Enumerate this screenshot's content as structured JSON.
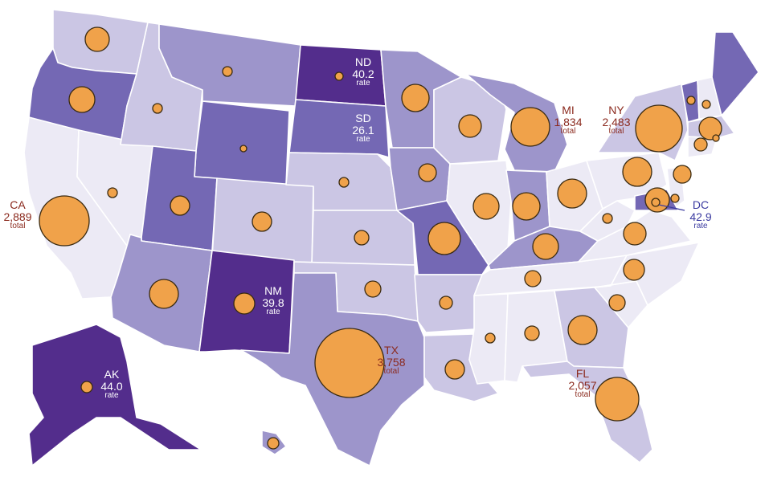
{
  "colors": {
    "level1": "#eceaf5",
    "level2": "#cbc6e4",
    "level3": "#9d95cb",
    "level4": "#7468b4",
    "level5": "#532d8c",
    "bubble": "#f0a24a",
    "total_label": "#8b2a1e",
    "rate_label_on_dark": "#ffffff",
    "rate_label_blue": "#3a3aa0"
  },
  "labels": {
    "CA": {
      "abbr": "CA",
      "value": "2,889",
      "kind": "total"
    },
    "TX": {
      "abbr": "TX",
      "value": "3,758",
      "kind": "total"
    },
    "FL": {
      "abbr": "FL",
      "value": "2,057",
      "kind": "total"
    },
    "NY": {
      "abbr": "NY",
      "value": "2,483",
      "kind": "total"
    },
    "MI": {
      "abbr": "MI",
      "value": "1,834",
      "kind": "total"
    },
    "ND": {
      "abbr": "ND",
      "value": "40.2",
      "kind": "rate"
    },
    "SD": {
      "abbr": "SD",
      "value": "26.1",
      "kind": "rate"
    },
    "NM": {
      "abbr": "NM",
      "value": "39.8",
      "kind": "rate"
    },
    "AK": {
      "abbr": "AK",
      "value": "44.0",
      "kind": "rate"
    },
    "DC": {
      "abbr": "DC",
      "value": "42.9",
      "kind": "rate"
    }
  },
  "states": [
    {
      "id": "WA",
      "level": 2
    },
    {
      "id": "OR",
      "level": 4
    },
    {
      "id": "CA",
      "level": 1
    },
    {
      "id": "NV",
      "level": 1
    },
    {
      "id": "ID",
      "level": 2
    },
    {
      "id": "MT",
      "level": 3
    },
    {
      "id": "WY",
      "level": 4
    },
    {
      "id": "UT",
      "level": 4
    },
    {
      "id": "AZ",
      "level": 3
    },
    {
      "id": "CO",
      "level": 2
    },
    {
      "id": "NM",
      "level": 5
    },
    {
      "id": "ND",
      "level": 5
    },
    {
      "id": "SD",
      "level": 4
    },
    {
      "id": "NE",
      "level": 2
    },
    {
      "id": "KS",
      "level": 2
    },
    {
      "id": "OK",
      "level": 2
    },
    {
      "id": "TX",
      "level": 3
    },
    {
      "id": "MN",
      "level": 3
    },
    {
      "id": "IA",
      "level": 3
    },
    {
      "id": "MO",
      "level": 4
    },
    {
      "id": "AR",
      "level": 2
    },
    {
      "id": "LA",
      "level": 2
    },
    {
      "id": "WI",
      "level": 2
    },
    {
      "id": "IL",
      "level": 1
    },
    {
      "id": "MI",
      "level": 3
    },
    {
      "id": "IN",
      "level": 3
    },
    {
      "id": "OH",
      "level": 1
    },
    {
      "id": "KY",
      "level": 3
    },
    {
      "id": "TN",
      "level": 1
    },
    {
      "id": "MS",
      "level": 1
    },
    {
      "id": "AL",
      "level": 1
    },
    {
      "id": "GA",
      "level": 2
    },
    {
      "id": "FL",
      "level": 2
    },
    {
      "id": "SC",
      "level": 1
    },
    {
      "id": "NC",
      "level": 1
    },
    {
      "id": "VA",
      "level": 1
    },
    {
      "id": "WV",
      "level": 1
    },
    {
      "id": "PA",
      "level": 1
    },
    {
      "id": "NY",
      "level": 2
    },
    {
      "id": "VT",
      "level": 4
    },
    {
      "id": "NH",
      "level": 1
    },
    {
      "id": "ME",
      "level": 4
    },
    {
      "id": "MA",
      "level": 2
    },
    {
      "id": "CT",
      "level": 1
    },
    {
      "id": "NJ",
      "level": 1
    },
    {
      "id": "MD",
      "level": 4
    },
    {
      "id": "AK",
      "level": 5
    },
    {
      "id": "HI",
      "level": 3
    }
  ]
}
